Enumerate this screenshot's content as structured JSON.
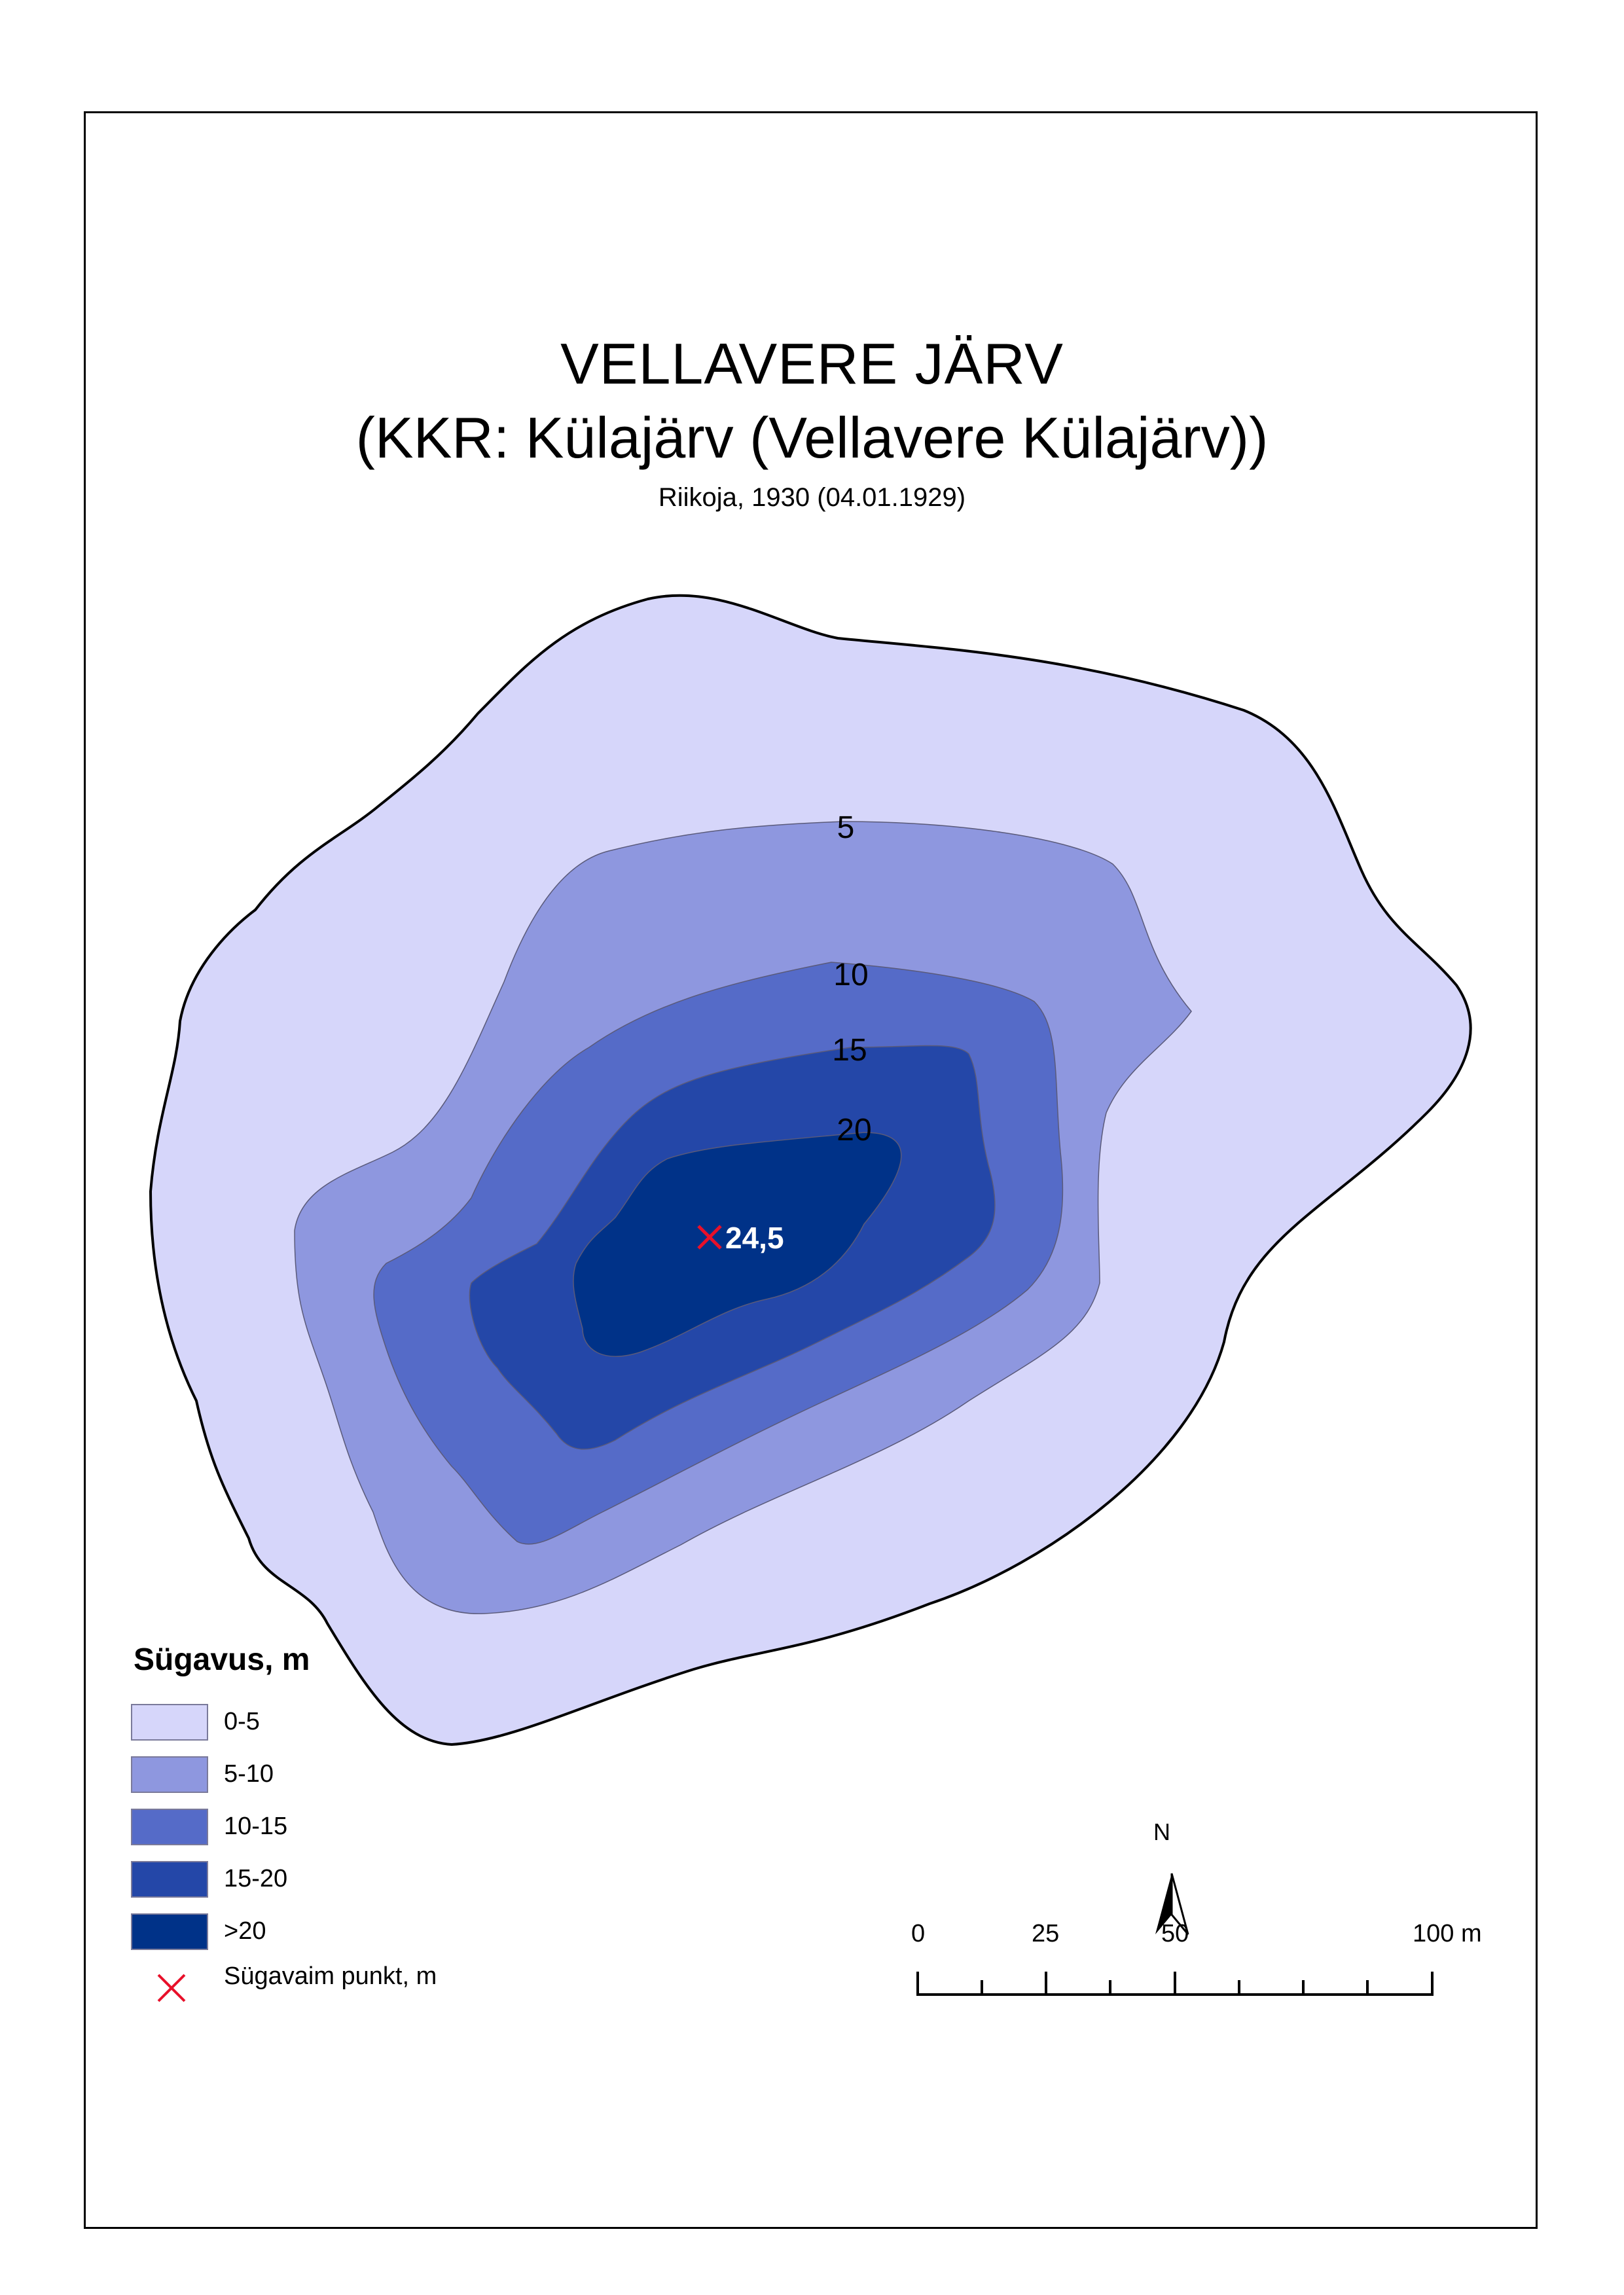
{
  "title": {
    "line1": "VELLAVERE JÄRV",
    "line2": "(KKR: Külajärv (Vellavere Külajärv))",
    "subtitle": "Riikoja, 1930 (04.01.1929)"
  },
  "colors": {
    "depth_0_5": "#d6d6fa",
    "depth_5_10": "#8e97df",
    "depth_10_15": "#556bc8",
    "depth_15_20": "#2447a8",
    "depth_gt20": "#003288",
    "shoreline": "#000000",
    "deepest_marker": "#e8102a",
    "deepest_value_text": "#ffffff"
  },
  "contours": {
    "c5": "5",
    "c10": "10",
    "c15": "15",
    "c20": "20"
  },
  "deepest_point": {
    "value": "24,5",
    "marker": "x"
  },
  "legend": {
    "title": "Sügavus, m",
    "items": [
      {
        "label": "0-5",
        "color": "#d6d6fa"
      },
      {
        "label": "5-10",
        "color": "#8e97df"
      },
      {
        "label": "10-15",
        "color": "#556bc8"
      },
      {
        "label": "15-20",
        "color": "#2447a8"
      },
      {
        "label": ">20",
        "color": "#003288"
      }
    ],
    "deepest_label": "Sügavaim punkt, m"
  },
  "north_arrow": {
    "label": "N",
    "icon": "north-arrow-icon"
  },
  "scale_bar": {
    "labels": [
      "0",
      "25",
      "50",
      "100 m"
    ]
  }
}
